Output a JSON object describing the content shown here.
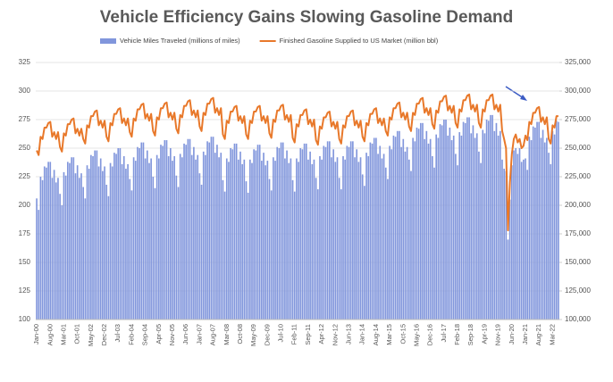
{
  "chart_data": {
    "type": "combo",
    "title": "Vehicle Efficiency Gains Slowing Gasoline Demand",
    "categories": [
      "Jan-00",
      null,
      null,
      null,
      null,
      null,
      null,
      "Aug-00",
      null,
      null,
      null,
      null,
      null,
      null,
      "Mar-01",
      null,
      null,
      null,
      null,
      null,
      null,
      "Oct-01",
      null,
      null,
      null,
      null,
      null,
      null,
      "May-02",
      null,
      null,
      null,
      null,
      null,
      null,
      "Dec-02",
      null,
      null,
      null,
      null,
      null,
      null,
      "Jul-03",
      null,
      null,
      null,
      null,
      null,
      null,
      "Feb-04",
      null,
      null,
      null,
      null,
      null,
      null,
      "Sep-04",
      null,
      null,
      null,
      null,
      null,
      null,
      "Apr-05",
      null,
      null,
      null,
      null,
      null,
      null,
      "Nov-05",
      null,
      null,
      null,
      null,
      null,
      null,
      "Jun-06",
      null,
      null,
      null,
      null,
      null,
      null,
      "Jan-07",
      null,
      null,
      null,
      null,
      null,
      null,
      "Aug-07",
      null,
      null,
      null,
      null,
      null,
      null,
      "Mar-08",
      null,
      null,
      null,
      null,
      null,
      null,
      "Oct-08",
      null,
      null,
      null,
      null,
      null,
      null,
      "May-09",
      null,
      null,
      null,
      null,
      null,
      null,
      "Dec-09",
      null,
      null,
      null,
      null,
      null,
      null,
      "Jul-10",
      null,
      null,
      null,
      null,
      null,
      null,
      "Feb-11",
      null,
      null,
      null,
      null,
      null,
      null,
      "Sep-11",
      null,
      null,
      null,
      null,
      null,
      null,
      "Apr-12",
      null,
      null,
      null,
      null,
      null,
      null,
      "Nov-12",
      null,
      null,
      null,
      null,
      null,
      null,
      "Jun-13",
      null,
      null,
      null,
      null,
      null,
      null,
      "Jan-14",
      null,
      null,
      null,
      null,
      null,
      null,
      "Aug-14",
      null,
      null,
      null,
      null,
      null,
      null,
      "Mar-15",
      null,
      null,
      null,
      null,
      null,
      null,
      "Oct-15",
      null,
      null,
      null,
      null,
      null,
      null,
      "May-16",
      null,
      null,
      null,
      null,
      null,
      null,
      "Dec-16",
      null,
      null,
      null,
      null,
      null,
      null,
      "Jul-17",
      null,
      null,
      null,
      null,
      null,
      null,
      "Feb-18",
      null,
      null,
      null,
      null,
      null,
      null,
      "Sep-18",
      null,
      null,
      null,
      null,
      null,
      null,
      "Apr-19",
      null,
      null,
      null,
      null,
      null,
      null,
      "Nov-19",
      null,
      null,
      null,
      null,
      null,
      null,
      "Jun-20",
      null,
      null,
      null,
      null,
      null,
      null,
      "Jan-21",
      null,
      null,
      null,
      null,
      null,
      null,
      "Aug-21",
      null,
      null,
      null,
      null,
      null,
      null,
      "Mar-22",
      null,
      null,
      null
    ],
    "series": [
      {
        "name": "Vehicle Miles Traveled (millions of miles)",
        "type": "bar",
        "color": "#8196dc",
        "values": [
          206,
          196,
          225,
          222,
          234,
          233,
          238,
          238,
          224,
          231,
          220,
          224,
          210,
          200,
          229,
          226,
          238,
          237,
          242,
          242,
          228,
          235,
          224,
          228,
          216,
          206,
          235,
          232,
          244,
          243,
          248,
          248,
          234,
          241,
          230,
          234,
          218,
          208,
          237,
          234,
          246,
          245,
          250,
          250,
          236,
          243,
          232,
          236,
          223,
          213,
          242,
          239,
          251,
          250,
          255,
          255,
          241,
          248,
          237,
          241,
          225,
          215,
          244,
          241,
          253,
          252,
          257,
          257,
          243,
          250,
          239,
          243,
          226,
          216,
          245,
          242,
          254,
          253,
          258,
          258,
          244,
          251,
          240,
          244,
          228,
          218,
          247,
          244,
          256,
          255,
          260,
          260,
          246,
          253,
          242,
          246,
          222,
          212,
          241,
          238,
          250,
          249,
          254,
          254,
          240,
          247,
          236,
          240,
          221,
          211,
          240,
          237,
          249,
          248,
          253,
          253,
          239,
          246,
          235,
          239,
          223,
          213,
          242,
          239,
          251,
          250,
          255,
          255,
          241,
          248,
          237,
          241,
          222,
          212,
          241,
          238,
          250,
          249,
          254,
          254,
          240,
          247,
          236,
          240,
          224,
          214,
          243,
          240,
          252,
          251,
          256,
          256,
          242,
          249,
          238,
          242,
          224,
          214,
          243,
          240,
          252,
          251,
          256,
          256,
          242,
          249,
          238,
          242,
          227,
          217,
          246,
          243,
          255,
          254,
          259,
          259,
          245,
          252,
          241,
          245,
          233,
          223,
          252,
          249,
          261,
          260,
          265,
          265,
          251,
          258,
          247,
          251,
          240,
          230,
          259,
          256,
          268,
          267,
          272,
          272,
          258,
          265,
          254,
          258,
          243,
          233,
          262,
          259,
          271,
          270,
          275,
          275,
          261,
          268,
          257,
          261,
          245,
          235,
          264,
          261,
          273,
          272,
          277,
          277,
          263,
          270,
          259,
          263,
          247,
          237,
          266,
          263,
          275,
          274,
          279,
          279,
          265,
          272,
          261,
          265,
          240,
          232,
          230,
          170,
          205,
          235,
          248,
          250,
          245,
          250,
          238,
          240,
          241,
          231,
          260,
          257,
          269,
          268,
          273,
          273,
          259,
          266,
          255,
          259,
          246,
          236,
          265,
          262,
          274,
          273
        ]
      },
      {
        "name": "Finished Gasoline Supplied to US Market (million bbl)",
        "type": "line",
        "axis": "y2",
        "color": "#e8782a",
        "values": [
          248000,
          244000,
          260000,
          258000,
          268000,
          268000,
          272000,
          273000,
          260000,
          264000,
          258000,
          264000,
          251000,
          247000,
          263000,
          261000,
          271000,
          271000,
          275000,
          276000,
          263000,
          267000,
          261000,
          267000,
          258000,
          254000,
          270000,
          268000,
          278000,
          278000,
          282000,
          283000,
          270000,
          274000,
          268000,
          274000,
          260000,
          256000,
          272000,
          270000,
          280000,
          280000,
          284000,
          285000,
          272000,
          276000,
          270000,
          276000,
          264000,
          260000,
          276000,
          274000,
          284000,
          284000,
          288000,
          289000,
          276000,
          280000,
          274000,
          280000,
          265000,
          261000,
          277000,
          275000,
          285000,
          285000,
          289000,
          290000,
          277000,
          281000,
          275000,
          281000,
          267000,
          263000,
          279000,
          277000,
          287000,
          287000,
          291000,
          292000,
          279000,
          283000,
          277000,
          283000,
          269000,
          265000,
          281000,
          279000,
          289000,
          289000,
          293000,
          294000,
          281000,
          285000,
          279000,
          285000,
          262000,
          258000,
          274000,
          272000,
          282000,
          282000,
          286000,
          287000,
          274000,
          278000,
          272000,
          278000,
          262000,
          258000,
          274000,
          272000,
          282000,
          282000,
          286000,
          287000,
          274000,
          278000,
          272000,
          278000,
          263000,
          259000,
          275000,
          273000,
          283000,
          283000,
          287000,
          288000,
          275000,
          279000,
          273000,
          279000,
          259000,
          255000,
          271000,
          269000,
          279000,
          279000,
          283000,
          284000,
          271000,
          275000,
          269000,
          275000,
          257000,
          253000,
          269000,
          267000,
          277000,
          277000,
          281000,
          282000,
          269000,
          273000,
          267000,
          273000,
          258000,
          254000,
          270000,
          268000,
          278000,
          278000,
          282000,
          283000,
          270000,
          274000,
          268000,
          274000,
          260000,
          256000,
          272000,
          270000,
          280000,
          280000,
          284000,
          285000,
          272000,
          276000,
          270000,
          276000,
          265000,
          261000,
          277000,
          275000,
          285000,
          285000,
          289000,
          290000,
          277000,
          281000,
          275000,
          281000,
          269000,
          265000,
          281000,
          279000,
          289000,
          289000,
          293000,
          294000,
          281000,
          285000,
          279000,
          285000,
          271000,
          267000,
          283000,
          281000,
          291000,
          291000,
          295000,
          296000,
          283000,
          287000,
          281000,
          287000,
          272000,
          268000,
          284000,
          282000,
          292000,
          292000,
          296000,
          297000,
          284000,
          288000,
          282000,
          288000,
          272000,
          268000,
          284000,
          282000,
          292000,
          292000,
          296000,
          297000,
          284000,
          288000,
          282000,
          288000,
          265000,
          258000,
          250000,
          178000,
          220000,
          245000,
          258000,
          262000,
          255000,
          258000,
          250000,
          252000,
          261000,
          257000,
          273000,
          271000,
          281000,
          281000,
          285000,
          286000,
          273000,
          277000,
          271000,
          277000,
          258000,
          254000,
          270000,
          268000,
          278000,
          278000
        ]
      }
    ],
    "ylim": [
      100,
      325
    ],
    "yticks": [
      100,
      125,
      150,
      175,
      200,
      225,
      250,
      275,
      300,
      325
    ],
    "y2lim": [
      100000,
      325000
    ],
    "y2ticks": [
      {
        "value": 100000,
        "label": "100,000"
      },
      {
        "value": 125000,
        "label": "125,000"
      },
      {
        "value": 150000,
        "label": "150,000"
      },
      {
        "value": 175000,
        "label": "175,000"
      },
      {
        "value": 200000,
        "label": "200,000"
      },
      {
        "value": 225000,
        "label": "225,000"
      },
      {
        "value": 250000,
        "label": "250,000"
      },
      {
        "value": 275000,
        "label": "275,000"
      },
      {
        "value": 300000,
        "label": "300,000"
      },
      {
        "value": 325000,
        "label": "325,000"
      }
    ],
    "grid": true,
    "legend": "top"
  }
}
